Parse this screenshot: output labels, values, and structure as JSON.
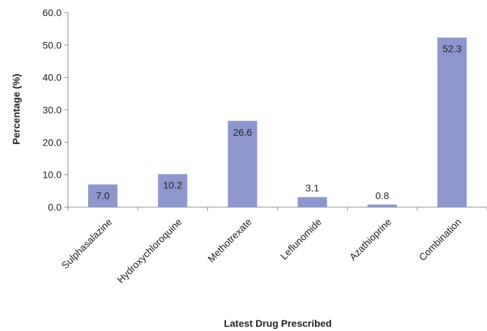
{
  "chart_data": {
    "type": "bar",
    "categories": [
      "Sulphasalazine",
      "Hydroxychloroquine",
      "Methotrexate",
      "Leflunomide",
      "Azathioprine",
      "Combination"
    ],
    "values": [
      7.0,
      10.2,
      26.6,
      3.1,
      0.8,
      52.3
    ],
    "value_labels": [
      "7.0",
      "10.2",
      "26.6",
      "3.1",
      "0.8",
      "52.3"
    ],
    "xlabel": "Latest Drug Prescribed",
    "ylabel": "Percentage (%)",
    "ylim": [
      0,
      60
    ],
    "yticks": [
      "0.0",
      "10.0",
      "20.0",
      "30.0",
      "40.0",
      "50.0",
      "60.0"
    ],
    "grid": false,
    "legend": "none",
    "bar_color": "#8e97cd"
  }
}
